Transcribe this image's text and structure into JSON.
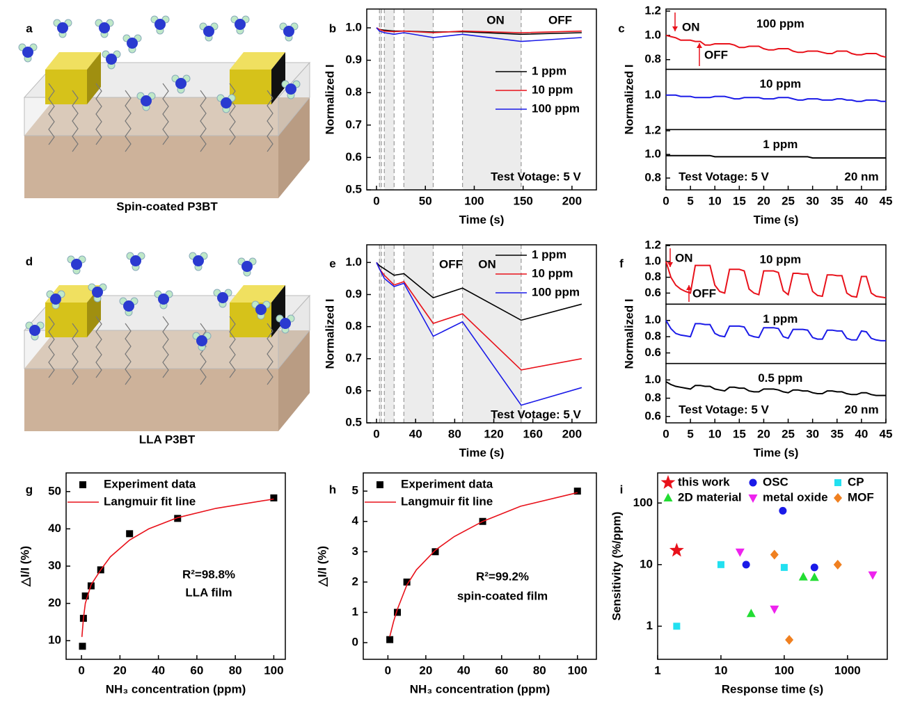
{
  "illustrations": [
    {
      "label": "a",
      "caption": "Spin-coated P3BT"
    },
    {
      "label": "d",
      "caption": "LLA P3BT"
    }
  ],
  "chart_data": [
    {
      "label": "b",
      "type": "line",
      "xlabel": "Time (s)",
      "ylabel": "Normalized I",
      "xlim": [
        -10,
        225
      ],
      "xticks": [
        0,
        50,
        100,
        150,
        200
      ],
      "ylim": [
        0.5,
        1.058
      ],
      "yticks": [
        0.5,
        0.6,
        0.7,
        0.8,
        0.9,
        {
          "value": 1,
          "label": "1.0"
        }
      ],
      "legend": "right",
      "shaded": [
        [
          3,
          5
        ],
        [
          8,
          18
        ],
        [
          28,
          58
        ],
        [
          88,
          148
        ]
      ],
      "annotations": [
        "ON",
        "OFF",
        "Test Votage: 5 V"
      ],
      "x": [
        0,
        3,
        8,
        18,
        28,
        58,
        88,
        148,
        210
      ],
      "series": [
        {
          "name": "1 ppm",
          "color": "#000000",
          "values": [
            1.0,
            0.995,
            0.993,
            0.99,
            0.99,
            0.987,
            0.988,
            0.98,
            0.985
          ]
        },
        {
          "name": "10 ppm",
          "color": "#e8111a",
          "values": [
            1.0,
            0.995,
            0.99,
            0.988,
            0.99,
            0.985,
            0.99,
            0.985,
            0.99
          ]
        },
        {
          "name": "100 ppm",
          "color": "#1a1ae8",
          "values": [
            1.0,
            0.99,
            0.985,
            0.98,
            0.985,
            0.97,
            0.98,
            0.958,
            0.97
          ]
        }
      ]
    },
    {
      "label": "c",
      "type": "line-stack",
      "xlabel": "Time (s)",
      "ylabel": "Normalized I",
      "xlim": [
        0,
        45
      ],
      "xticks": [
        0,
        5,
        10,
        15,
        20,
        25,
        30,
        35,
        40,
        45
      ],
      "annotations": [
        "ON",
        "OFF",
        "Test Votage: 5 V",
        "20 nm"
      ],
      "x": [
        0,
        1,
        2,
        3,
        4,
        5,
        6,
        7,
        8,
        9,
        10,
        11,
        12,
        13,
        14,
        15,
        16,
        17,
        18,
        19,
        20,
        21,
        22,
        23,
        24,
        25,
        26,
        27,
        28,
        29,
        30,
        31,
        32,
        33,
        34,
        35,
        36,
        37,
        38,
        39,
        40,
        41,
        42,
        43,
        44,
        45
      ],
      "series": [
        {
          "name": "100 ppm",
          "color": "#e8111a",
          "ylim": [
            0.72,
            1.217
          ],
          "yticks": [
            0.8,
            {
              "value": 1,
              "label": "1.0"
            },
            1.2
          ],
          "values": [
            1.0,
            0.99,
            0.98,
            0.96,
            0.96,
            0.96,
            0.95,
            0.95,
            0.92,
            0.92,
            0.93,
            0.93,
            0.93,
            0.93,
            0.92,
            0.9,
            0.9,
            0.91,
            0.91,
            0.91,
            0.89,
            0.88,
            0.88,
            0.89,
            0.89,
            0.89,
            0.87,
            0.86,
            0.86,
            0.87,
            0.87,
            0.87,
            0.86,
            0.85,
            0.85,
            0.87,
            0.87,
            0.87,
            0.85,
            0.84,
            0.84,
            0.85,
            0.85,
            0.85,
            0.83,
            0.82
          ]
        },
        {
          "name": "10 ppm",
          "color": "#1a1ae8",
          "ylim": [
            0.72,
            1.21
          ],
          "yticks": [
            {
              "value": 1,
              "label": "1.0"
            }
          ],
          "values": [
            1.0,
            1.0,
            1.0,
            0.99,
            0.99,
            0.99,
            0.98,
            0.98,
            0.98,
            0.98,
            0.99,
            0.99,
            0.99,
            0.98,
            0.97,
            0.97,
            0.98,
            0.98,
            0.98,
            0.98,
            0.97,
            0.97,
            0.97,
            0.98,
            0.98,
            0.98,
            0.97,
            0.96,
            0.96,
            0.97,
            0.97,
            0.97,
            0.96,
            0.96,
            0.96,
            0.97,
            0.97,
            0.96,
            0.96,
            0.95,
            0.95,
            0.96,
            0.96,
            0.96,
            0.95,
            0.95
          ]
        },
        {
          "name": "1 ppm",
          "color": "#000000",
          "ylim": [
            0.7,
            1.21
          ],
          "yticks": [
            0.8,
            {
              "value": 1,
              "label": "1.0"
            },
            1.2
          ],
          "values": [
            0.99,
            0.99,
            0.99,
            0.99,
            0.99,
            0.99,
            0.99,
            0.99,
            0.99,
            0.99,
            0.98,
            0.98,
            0.98,
            0.98,
            0.98,
            0.98,
            0.98,
            0.98,
            0.98,
            0.98,
            0.98,
            0.98,
            0.98,
            0.98,
            0.98,
            0.98,
            0.98,
            0.98,
            0.98,
            0.98,
            0.97,
            0.97,
            0.97,
            0.97,
            0.97,
            0.97,
            0.97,
            0.97,
            0.97,
            0.97,
            0.97,
            0.97,
            0.97,
            0.97,
            0.97,
            0.97
          ]
        }
      ]
    },
    {
      "label": "e",
      "type": "line",
      "xlabel": "Time (s)",
      "ylabel": "Normalized I",
      "xlim": [
        -10,
        225
      ],
      "xticks": [
        0,
        40,
        80,
        120,
        160,
        200
      ],
      "ylim": [
        0.5,
        1.055
      ],
      "yticks": [
        0.5,
        0.6,
        0.7,
        0.8,
        0.9,
        {
          "value": 1,
          "label": "1.0"
        }
      ],
      "legend": "upper right",
      "shaded": [
        [
          3,
          5
        ],
        [
          8,
          18
        ],
        [
          28,
          58
        ],
        [
          88,
          148
        ]
      ],
      "annotations": [
        "OFF",
        "ON",
        "Test Votage: 5 V"
      ],
      "x": [
        0,
        3,
        8,
        18,
        28,
        58,
        88,
        148,
        210
      ],
      "series": [
        {
          "name": "1 ppm",
          "color": "#000000",
          "values": [
            1.0,
            0.99,
            0.98,
            0.96,
            0.965,
            0.89,
            0.92,
            0.82,
            0.87
          ]
        },
        {
          "name": "10 ppm",
          "color": "#e8111a",
          "values": [
            1.0,
            0.98,
            0.96,
            0.93,
            0.94,
            0.81,
            0.84,
            0.665,
            0.7
          ]
        },
        {
          "name": "100 ppm",
          "color": "#1a1ae8",
          "values": [
            1.0,
            0.98,
            0.95,
            0.925,
            0.935,
            0.77,
            0.815,
            0.555,
            0.61
          ]
        }
      ]
    },
    {
      "label": "f",
      "type": "line-stack",
      "xlabel": "Time (s)",
      "ylabel": "Normalized I",
      "xlim": [
        0,
        45
      ],
      "xticks": [
        0,
        5,
        10,
        15,
        20,
        25,
        30,
        35,
        40,
        45
      ],
      "annotations": [
        "ON",
        "OFF",
        "Test Votage: 5 V",
        "20 nm"
      ],
      "x": [
        0,
        1,
        2,
        3,
        4,
        5,
        6,
        7,
        8,
        9,
        10,
        11,
        12,
        13,
        14,
        15,
        16,
        17,
        18,
        19,
        20,
        21,
        22,
        23,
        24,
        25,
        26,
        27,
        28,
        29,
        30,
        31,
        32,
        33,
        34,
        35,
        36,
        37,
        38,
        39,
        40,
        41,
        42,
        43,
        44,
        45
      ],
      "series": [
        {
          "name": "10 ppm",
          "color": "#e8111a",
          "ylim": [
            0.46,
            1.21
          ],
          "yticks": [
            0.6,
            0.8,
            {
              "value": 1,
              "label": "1.0"
            },
            1.2
          ],
          "values": [
            1.0,
            0.8,
            0.7,
            0.65,
            0.62,
            0.6,
            0.95,
            0.95,
            0.95,
            0.95,
            0.7,
            0.62,
            0.6,
            0.9,
            0.9,
            0.9,
            0.88,
            0.65,
            0.6,
            0.58,
            0.88,
            0.88,
            0.88,
            0.86,
            0.63,
            0.58,
            0.85,
            0.85,
            0.84,
            0.84,
            0.62,
            0.57,
            0.56,
            0.83,
            0.83,
            0.82,
            0.82,
            0.6,
            0.56,
            0.55,
            0.81,
            0.81,
            0.6,
            0.56,
            0.55,
            0.54
          ]
        },
        {
          "name": "1 ppm",
          "color": "#1a1ae8",
          "ylim": [
            0.47,
            1.2
          ],
          "yticks": [
            0.6,
            0.8,
            {
              "value": 1,
              "label": "1.0"
            }
          ],
          "values": [
            1.0,
            0.9,
            0.84,
            0.82,
            0.81,
            0.8,
            0.96,
            0.96,
            0.95,
            0.95,
            0.84,
            0.81,
            0.8,
            0.93,
            0.93,
            0.93,
            0.92,
            0.82,
            0.8,
            0.79,
            0.91,
            0.91,
            0.91,
            0.9,
            0.8,
            0.78,
            0.89,
            0.89,
            0.89,
            0.88,
            0.79,
            0.77,
            0.77,
            0.88,
            0.88,
            0.87,
            0.87,
            0.78,
            0.76,
            0.76,
            0.87,
            0.86,
            0.78,
            0.76,
            0.75,
            0.75
          ]
        },
        {
          "name": "0.5 ppm",
          "color": "#000000",
          "ylim": [
            0.53,
            1.18
          ],
          "yticks": [
            0.6,
            0.8,
            {
              "value": 1,
              "label": "1.0"
            }
          ],
          "values": [
            0.98,
            0.95,
            0.93,
            0.92,
            0.91,
            0.9,
            0.94,
            0.94,
            0.93,
            0.93,
            0.9,
            0.89,
            0.88,
            0.92,
            0.92,
            0.91,
            0.91,
            0.88,
            0.87,
            0.87,
            0.9,
            0.9,
            0.9,
            0.89,
            0.87,
            0.86,
            0.89,
            0.89,
            0.88,
            0.88,
            0.86,
            0.85,
            0.85,
            0.88,
            0.88,
            0.87,
            0.87,
            0.85,
            0.84,
            0.84,
            0.86,
            0.86,
            0.84,
            0.83,
            0.83,
            0.83
          ]
        }
      ]
    },
    {
      "label": "g",
      "type": "scatter",
      "xlabel": "NH₃ concentration (ppm)",
      "ylabel": "△I/I (%)",
      "xlim": [
        -8,
        106
      ],
      "xticks": [
        0,
        20,
        40,
        60,
        80,
        100
      ],
      "ylim": [
        5,
        55
      ],
      "yticks": [
        10,
        20,
        30,
        40,
        50
      ],
      "legend": "upper left",
      "annotations": [
        "R²=98.8%",
        "LLA film"
      ],
      "series": [
        {
          "name": "Experiment data",
          "color": "#000000",
          "marker": "square",
          "x": [
            0.5,
            1,
            2,
            5,
            10,
            25,
            50,
            100
          ],
          "values": [
            8.5,
            16,
            22,
            24.7,
            29,
            38.7,
            42.8,
            48.3
          ]
        },
        {
          "name": "Langmuir fit line",
          "color": "#e8111a",
          "marker": "line",
          "x": [
            0.2,
            1,
            2,
            5,
            10,
            15,
            25,
            35,
            50,
            70,
            100
          ],
          "values": [
            11,
            16,
            20,
            25,
            29,
            32.5,
            37,
            40,
            43,
            45.5,
            48
          ]
        }
      ]
    },
    {
      "label": "h",
      "type": "scatter",
      "xlabel": "NH₃ concentration (ppm)",
      "ylabel": "△I/I (%)",
      "xlim": [
        -13,
        110
      ],
      "xticks": [
        0,
        20,
        40,
        60,
        80,
        100
      ],
      "ylim": [
        -0.55,
        5.6
      ],
      "yticks": [
        0,
        1,
        2,
        3,
        4,
        5
      ],
      "legend": "upper left",
      "annotations": [
        "R²=99.2%",
        "spin-coated film"
      ],
      "series": [
        {
          "name": "Experiment data",
          "color": "#000000",
          "marker": "square",
          "x": [
            1,
            5,
            10,
            25,
            50,
            100
          ],
          "values": [
            0.1,
            1,
            2,
            3,
            4,
            5
          ]
        },
        {
          "name": "Langmuir fit line",
          "color": "#e8111a",
          "marker": "line",
          "x": [
            1,
            3,
            5,
            10,
            15,
            25,
            35,
            50,
            70,
            100
          ],
          "values": [
            0.2,
            0.7,
            1.1,
            1.9,
            2.4,
            3.05,
            3.5,
            4.0,
            4.5,
            4.95
          ]
        }
      ]
    },
    {
      "label": "i",
      "type": "scatter",
      "xlabel": "Response time (s)",
      "ylabel": "Sensitivity (%/ppm)",
      "xlog": true,
      "ylog": true,
      "xlim": [
        1,
        4250
      ],
      "xticks": [
        1,
        10,
        100,
        1000
      ],
      "ylim": [
        0.29,
        308
      ],
      "yticks": [
        1,
        10,
        100
      ],
      "legend": "top",
      "annotations": [],
      "series": [
        {
          "name": "this work",
          "color": "#e8111a",
          "marker": "star",
          "x": [
            2
          ],
          "values": [
            17
          ]
        },
        {
          "name": "OSC",
          "color": "#1a1ae8",
          "marker": "circle",
          "x": [
            25,
            95,
            300
          ],
          "values": [
            10,
            75,
            9
          ]
        },
        {
          "name": "CP",
          "color": "#22e0f0",
          "marker": "square",
          "x": [
            2,
            10,
            100
          ],
          "values": [
            1,
            10,
            9
          ]
        },
        {
          "name": "2D material",
          "color": "#22dd33",
          "marker": "triangle",
          "x": [
            30,
            200,
            300
          ],
          "values": [
            1.6,
            6.3,
            6.2
          ]
        },
        {
          "name": "metal oxide",
          "color": "#ee22ee",
          "marker": "triangle-down",
          "x": [
            20,
            70,
            2500
          ],
          "values": [
            16,
            1.9,
            6.8
          ]
        },
        {
          "name": "MOF",
          "color": "#f08020",
          "marker": "diamond",
          "x": [
            70,
            120,
            700
          ],
          "values": [
            14.5,
            0.6,
            10
          ]
        }
      ]
    }
  ]
}
